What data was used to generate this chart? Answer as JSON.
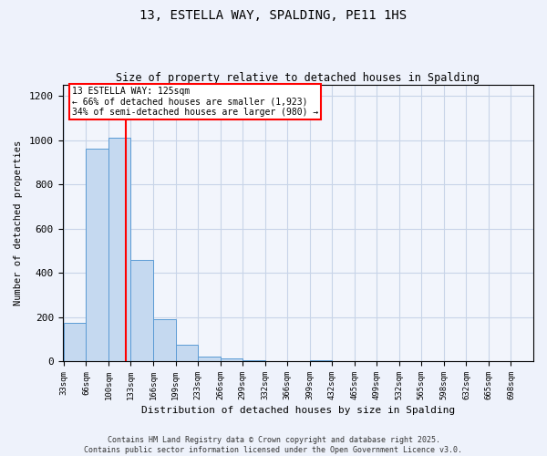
{
  "title_line1": "13, ESTELLA WAY, SPALDING, PE11 1HS",
  "title_line2": "Size of property relative to detached houses in Spalding",
  "xlabel": "Distribution of detached houses by size in Spalding",
  "ylabel": "Number of detached properties",
  "categories": [
    "33sqm",
    "66sqm",
    "100sqm",
    "133sqm",
    "166sqm",
    "199sqm",
    "233sqm",
    "266sqm",
    "299sqm",
    "332sqm",
    "366sqm",
    "399sqm",
    "432sqm",
    "465sqm",
    "499sqm",
    "532sqm",
    "565sqm",
    "598sqm",
    "632sqm",
    "665sqm",
    "698sqm"
  ],
  "values": [
    175,
    960,
    1010,
    460,
    190,
    75,
    20,
    12,
    5,
    1,
    0,
    5,
    0,
    0,
    0,
    0,
    0,
    0,
    0,
    0,
    0
  ],
  "bar_color": "#c5d9f0",
  "bar_edge_color": "#5b9bd5",
  "grid_color": "#c8d4e8",
  "annotation_text": "13 ESTELLA WAY: 125sqm\n← 66% of detached houses are smaller (1,923)\n34% of semi-detached houses are larger (980) →",
  "redline_x": 2.76,
  "ylim": [
    0,
    1250
  ],
  "yticks": [
    0,
    200,
    400,
    600,
    800,
    1000,
    1200
  ],
  "footer_line1": "Contains HM Land Registry data © Crown copyright and database right 2025.",
  "footer_line2": "Contains public sector information licensed under the Open Government Licence v3.0.",
  "bg_color": "#eef2fb",
  "plot_bg_color": "#f2f5fc"
}
